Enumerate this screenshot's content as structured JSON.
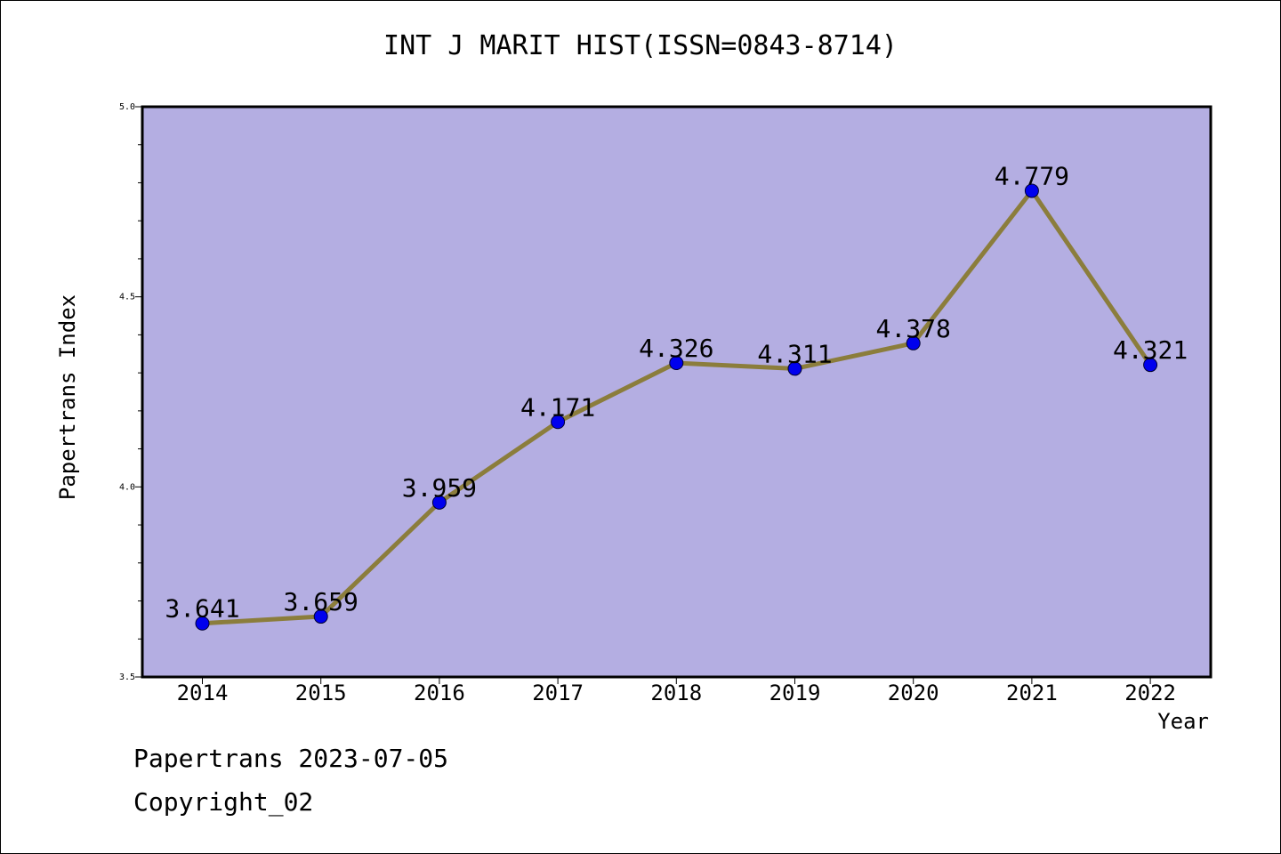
{
  "chart_data": {
    "type": "line",
    "title": "INT J MARIT HIST(ISSN=0843-8714)",
    "xlabel": "Year",
    "ylabel": "Papertrans Index",
    "categories": [
      "2014",
      "2015",
      "2016",
      "2017",
      "2018",
      "2019",
      "2020",
      "2021",
      "2022"
    ],
    "values": [
      3.641,
      3.659,
      3.959,
      4.171,
      4.326,
      4.311,
      4.378,
      4.779,
      4.321
    ],
    "data_labels": [
      "3.641",
      "3.659",
      "3.959",
      "4.171",
      "4.326",
      "4.311",
      "4.378",
      "4.779",
      "4.321"
    ],
    "ylim": [
      3.5,
      5.0
    ],
    "yticks": [
      "3.5",
      "4.0",
      "4.5",
      "5.0"
    ],
    "grid": false,
    "colors": {
      "plot_background": "#b4aee2",
      "line": "#8b7d3c",
      "marker": "#0000ee"
    }
  },
  "footer": {
    "line1": "Papertrans 2023-07-05",
    "line2": "Copyright_02"
  }
}
